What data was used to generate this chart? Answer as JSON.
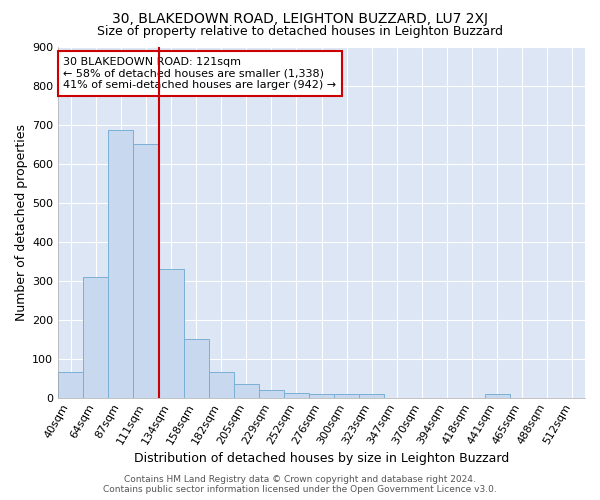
{
  "title": "30, BLAKEDOWN ROAD, LEIGHTON BUZZARD, LU7 2XJ",
  "subtitle": "Size of property relative to detached houses in Leighton Buzzard",
  "xlabel": "Distribution of detached houses by size in Leighton Buzzard",
  "ylabel": "Number of detached properties",
  "bar_color": "#c8d8ee",
  "bar_edge_color": "#7aafd4",
  "bg_color": "#ffffff",
  "plot_bg_color": "#dce6f5",
  "grid_color": "#ffffff",
  "categories": [
    "40sqm",
    "64sqm",
    "87sqm",
    "111sqm",
    "134sqm",
    "158sqm",
    "182sqm",
    "205sqm",
    "229sqm",
    "252sqm",
    "276sqm",
    "300sqm",
    "323sqm",
    "347sqm",
    "370sqm",
    "394sqm",
    "418sqm",
    "441sqm",
    "465sqm",
    "488sqm",
    "512sqm"
  ],
  "values": [
    65,
    308,
    685,
    651,
    330,
    150,
    65,
    35,
    20,
    12,
    10,
    10,
    8,
    0,
    0,
    0,
    0,
    10,
    0,
    0,
    0
  ],
  "ylim": [
    0,
    900
  ],
  "yticks": [
    0,
    100,
    200,
    300,
    400,
    500,
    600,
    700,
    800,
    900
  ],
  "vline_x": 3.5,
  "vline_color": "#cc0000",
  "annotation_text": "30 BLAKEDOWN ROAD: 121sqm\n← 58% of detached houses are smaller (1,338)\n41% of semi-detached houses are larger (942) →",
  "annotation_box_color": "#ffffff",
  "annotation_border_color": "#cc0000",
  "footer_text1": "Contains HM Land Registry data © Crown copyright and database right 2024.",
  "footer_text2": "Contains public sector information licensed under the Open Government Licence v3.0.",
  "title_fontsize": 10,
  "subtitle_fontsize": 9,
  "axis_label_fontsize": 9,
  "tick_fontsize": 8,
  "annotation_fontsize": 8,
  "footer_fontsize": 6.5
}
